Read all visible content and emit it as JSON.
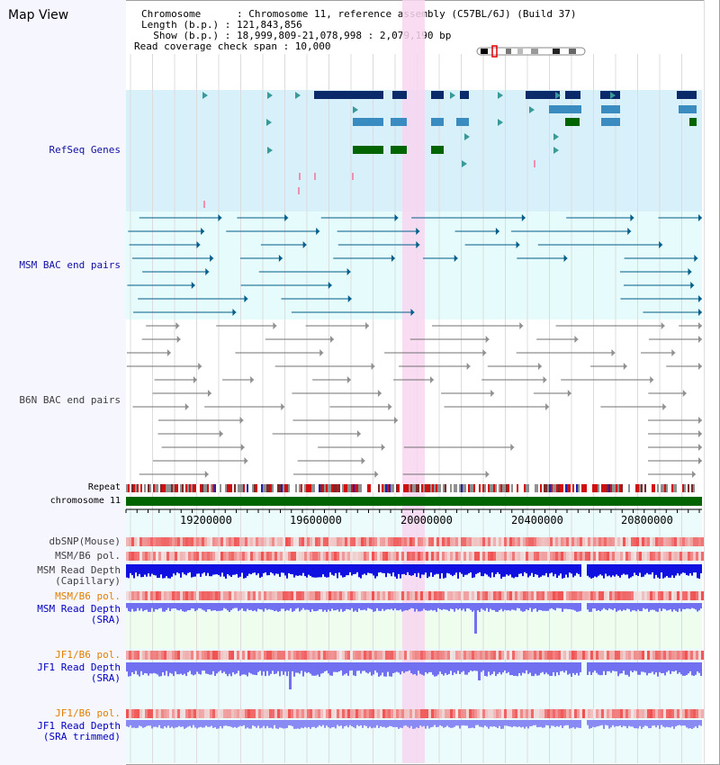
{
  "header": {
    "title": "Map View",
    "info_lines": [
      "Chromosome      : Chromosome 11, reference assembly (C57BL/6J) (Build 37)",
      "Length (b.p.) : 121,843,856",
      "  Show (b.p.) : 18,999,809-21,078,998 : 2,079,190 bp",
      "Read coverage check span : 10,000"
    ]
  },
  "tracks": {
    "refseq": "RefSeq Genes",
    "msm_bac": "MSM BAC end pairs",
    "b6n_bac": "B6N BAC end pairs",
    "repeat": "Repeat",
    "chromosome": "chromosome 11",
    "dbsnp": "dbSNP(Mouse)",
    "msm_b6_pol_1": "MSM/B6 pol.",
    "msm_read_depth_cap": "MSM Read Depth\n(Capillary)",
    "msm_b6_pol_2": "MSM/B6 pol.",
    "msm_read_depth_sra": "MSM Read Depth\n(SRA)",
    "jf1_b6_pol_1": "JF1/B6 pol.",
    "jf1_read_depth_sra": "JF1 Read Depth\n(SRA)",
    "jf1_b6_pol_2": "JF1/B6 pol.",
    "jf1_read_depth_trim": "JF1 Read Depth\n(SRA trimmed)"
  },
  "axis": {
    "ticks": [
      "19200000",
      "19600000",
      "20000000",
      "20400000",
      "20800000"
    ]
  },
  "colors": {
    "refseq_bg": "#d8f0fa",
    "bac_bg": "#e6fbfb",
    "highlight": "#f8d6f0",
    "gene_dark": "#0a2a6a",
    "gene_mid": "#3a8cc0",
    "gene_green": "#006400",
    "bac_blue": "#005e8a",
    "bac_gray": "#707070",
    "depth_capillary": "#1010e0",
    "depth_sra": "#7070f0",
    "pol_red": "#f04040",
    "chrom_green": "#006400"
  },
  "icons": [
    "chromosome-ideogram-icon"
  ]
}
